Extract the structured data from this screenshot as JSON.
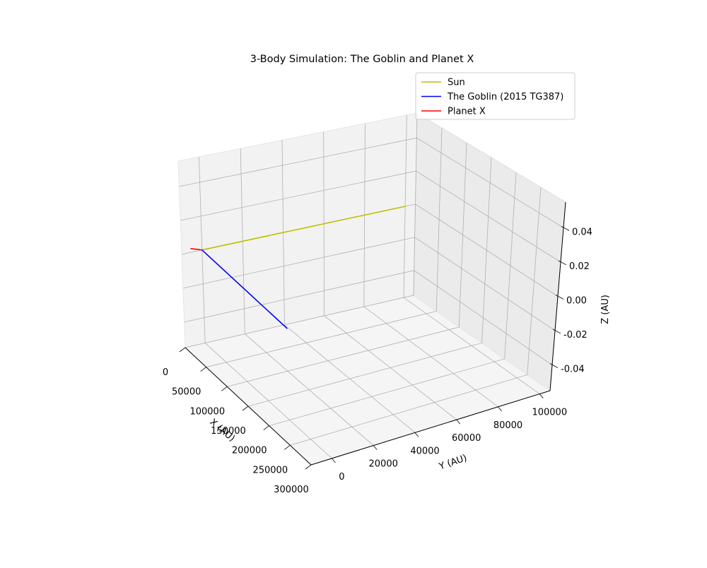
{
  "chart_data": {
    "type": "line",
    "projection": "3d",
    "title": "3-Body Simulation: The Goblin and Planet X",
    "xlabel": "X (AU)",
    "ylabel": "Y (AU)",
    "zlabel": "Z (AU)",
    "xlim": [
      0,
      300000
    ],
    "ylim": [
      -10000,
      105000
    ],
    "zlim": [
      -0.055,
      0.055
    ],
    "x_ticks": [
      "0",
      "50000",
      "100000",
      "150000",
      "200000",
      "250000",
      "300000"
    ],
    "y_ticks": [
      "0",
      "20000",
      "40000",
      "60000",
      "80000",
      "100000"
    ],
    "z_ticks": [
      "0.04",
      "0.02",
      "0.00",
      "-0.02",
      "-0.04"
    ],
    "grid": true,
    "legend_position": "top-right",
    "series": [
      {
        "name": "Sun",
        "color": "#bfbf00",
        "points": [
          [
            0,
            0,
            0
          ],
          [
            0,
            100000,
            0
          ]
        ]
      },
      {
        "name": "The Goblin (2015 TG387)",
        "color": "#0000ff",
        "points": [
          [
            0,
            0,
            0
          ],
          [
            200000,
            0,
            0
          ]
        ]
      },
      {
        "name": "Planet X",
        "color": "#ff0000",
        "points": [
          [
            0,
            0,
            0
          ],
          [
            -8000,
            -4000,
            0
          ]
        ]
      }
    ]
  }
}
